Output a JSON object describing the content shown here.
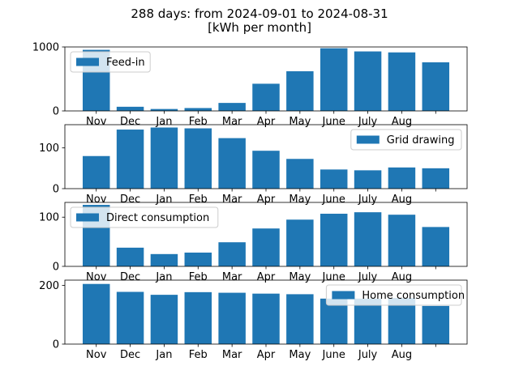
{
  "title": [
    "288 days: from 2024-09-01 to 2024-08-31",
    "[kWh per month]"
  ],
  "bar_color": "#1f77b4",
  "chart_data": [
    {
      "type": "bar",
      "categories": [
        "Nov",
        "Dec",
        "Jan",
        "Feb",
        "Mar",
        "Apr",
        "May",
        "June",
        "July",
        "Aug",
        ""
      ],
      "series": [
        {
          "name": "Feed-in",
          "values": [
            955,
            65,
            30,
            45,
            125,
            425,
            620,
            980,
            930,
            915,
            760
          ]
        }
      ],
      "ylim": [
        0,
        1000
      ],
      "yticks": [
        0,
        1000
      ],
      "legend": "top-left"
    },
    {
      "type": "bar",
      "categories": [
        "Nov",
        "Dec",
        "Jan",
        "Feb",
        "Mar",
        "Apr",
        "May",
        "June",
        "July",
        "Aug",
        ""
      ],
      "series": [
        {
          "name": "Grid drawing",
          "values": [
            80,
            145,
            150,
            148,
            124,
            93,
            73,
            47,
            45,
            52,
            50
          ]
        }
      ],
      "ylim": [
        0,
        157
      ],
      "yticks": [
        0,
        100
      ],
      "legend": "top-right"
    },
    {
      "type": "bar",
      "categories": [
        "Nov",
        "Dec",
        "Jan",
        "Feb",
        "Mar",
        "Apr",
        "May",
        "June",
        "July",
        "Aug",
        ""
      ],
      "series": [
        {
          "name": "Direct consumption",
          "values": [
            125,
            38,
            25,
            28,
            49,
            77,
            95,
            107,
            110,
            105,
            80
          ]
        }
      ],
      "ylim": [
        0,
        130
      ],
      "yticks": [
        0,
        100
      ],
      "legend": "top-left"
    },
    {
      "type": "bar",
      "categories": [
        "Nov",
        "Dec",
        "Jan",
        "Feb",
        "Mar",
        "Apr",
        "May",
        "June",
        "July",
        "Aug",
        ""
      ],
      "series": [
        {
          "name": "Home consumption",
          "values": [
            205,
            178,
            168,
            177,
            175,
            172,
            170,
            155,
            155,
            157,
            130
          ]
        }
      ],
      "ylim": [
        0,
        218
      ],
      "yticks": [
        0,
        200
      ],
      "legend": "top-right"
    }
  ]
}
